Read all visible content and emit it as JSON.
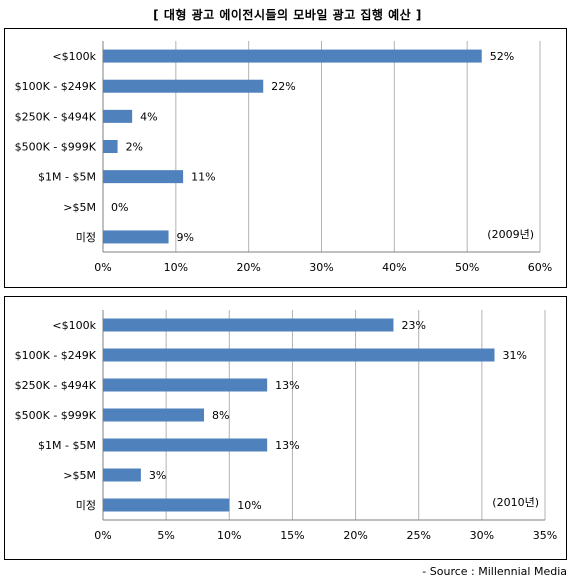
{
  "title": "[ 대형 광고 에이전시들의 모바일 광고 집행 예산 ]",
  "source": "- Source : Millennial Media",
  "chart_data": [
    {
      "type": "bar",
      "orientation": "horizontal",
      "categories": [
        "<$100k",
        "$100K - $249K",
        "$250K - $494K",
        "$500K - $999K",
        "$1M - $5M",
        ">$5M",
        "미정"
      ],
      "values": [
        52,
        22,
        4,
        2,
        11,
        0,
        9
      ],
      "value_labels": [
        "52%",
        "22%",
        "4%",
        "2%",
        "11%",
        "0%",
        "9%"
      ],
      "ticks": [
        0,
        10,
        20,
        30,
        40,
        50,
        60
      ],
      "tick_labels": [
        "0%",
        "10%",
        "20%",
        "30%",
        "40%",
        "50%",
        "60%"
      ],
      "xlim": [
        0,
        60
      ],
      "note": "(2009년)",
      "color": "#4f81bd",
      "grid": true
    },
    {
      "type": "bar",
      "orientation": "horizontal",
      "categories": [
        "<$100k",
        "$100K - $249K",
        "$250K - $494K",
        "$500K - $999K",
        "$1M - $5M",
        ">$5M",
        "미정"
      ],
      "values": [
        23,
        31,
        13,
        8,
        13,
        3,
        10
      ],
      "value_labels": [
        "23%",
        "31%",
        "13%",
        "8%",
        "13%",
        "3%",
        "10%"
      ],
      "ticks": [
        0,
        5,
        10,
        15,
        20,
        25,
        30,
        35
      ],
      "tick_labels": [
        "0%",
        "5%",
        "10%",
        "15%",
        "20%",
        "25%",
        "30%",
        "35%"
      ],
      "xlim": [
        0,
        35
      ],
      "note": "(2010년)",
      "color": "#4f81bd",
      "grid": true
    }
  ]
}
